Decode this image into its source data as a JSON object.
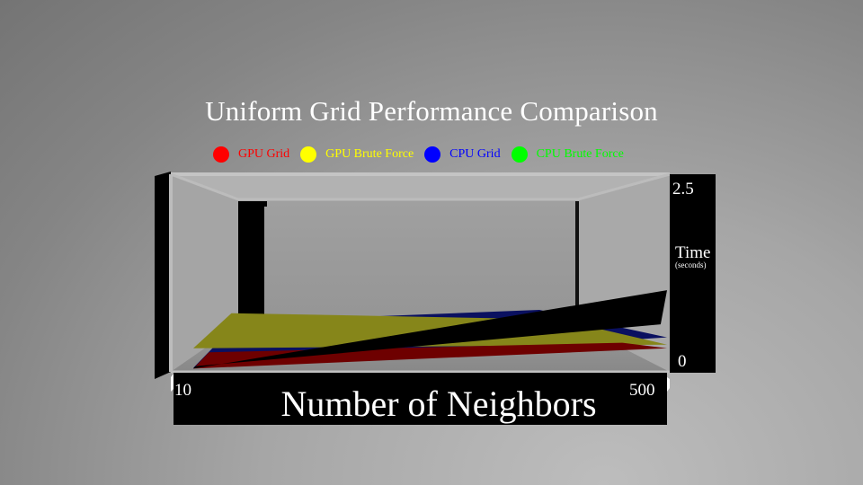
{
  "chart_data": {
    "type": "area",
    "title": "Uniform Grid Performance Comparison",
    "xlabel": "Number of Neighbors",
    "ylabel": "Time",
    "ylabel_unit": "(seconds)",
    "x_tick_labels": [
      "10",
      "500"
    ],
    "y_tick_labels": [
      "0",
      "2.5"
    ],
    "xlim": [
      10,
      500
    ],
    "ylim": [
      0,
      2.5
    ],
    "x": [
      10,
      500
    ],
    "series": [
      {
        "name": "GPU Grid",
        "color": "#ff0000",
        "values": [
          0.02,
          0.3
        ]
      },
      {
        "name": "GPU Brute Force",
        "color": "#ffff00",
        "values": [
          0.3,
          0.35
        ]
      },
      {
        "name": "CPU Grid",
        "color": "#0000ff",
        "values": [
          0.03,
          0.45
        ]
      },
      {
        "name": "CPU Brute Force",
        "color": "#00ff00",
        "values": [
          0.02,
          1.1
        ]
      }
    ],
    "surface_colors": {
      "GPU Grid": "#6e0000",
      "GPU Brute Force": "#86861a",
      "CPU Grid": "#0a1060",
      "CPU Brute Force": "#000000"
    },
    "grid": false,
    "legend_position": "top-center",
    "render_style": "3d"
  }
}
